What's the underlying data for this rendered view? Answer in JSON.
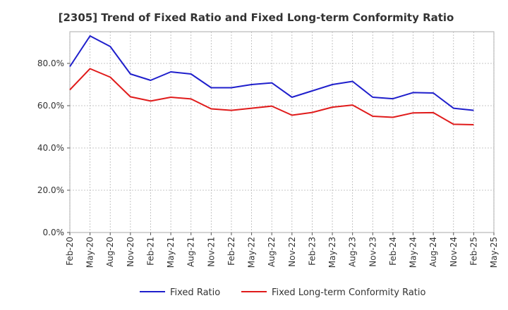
{
  "chart_data": {
    "type": "line",
    "title": "[2305]  Trend of Fixed Ratio and Fixed Long-term Conformity Ratio",
    "xlabel": "",
    "ylabel": "",
    "x_ticks": [
      "Feb-20",
      "May-20",
      "Aug-20",
      "Nov-20",
      "Feb-21",
      "May-21",
      "Aug-21",
      "Nov-21",
      "Feb-22",
      "May-22",
      "Aug-22",
      "Nov-22",
      "Feb-23",
      "May-23",
      "Aug-23",
      "Nov-23",
      "Feb-24",
      "May-24",
      "Aug-24",
      "Nov-24",
      "Feb-25",
      "May-25"
    ],
    "y_ticks": [
      "0.0%",
      "20.0%",
      "40.0%",
      "60.0%",
      "80.0%"
    ],
    "ylim": [
      0,
      95
    ],
    "grid": true,
    "legend": "bottom-center",
    "x": [
      "Feb-20",
      "May-20",
      "Aug-20",
      "Nov-20",
      "Feb-21",
      "May-21",
      "Aug-21",
      "Nov-21",
      "Feb-22",
      "May-22",
      "Aug-22",
      "Nov-22",
      "Feb-23",
      "May-23",
      "Aug-23",
      "Nov-23",
      "Feb-24",
      "May-24",
      "Aug-24",
      "Nov-24",
      "Feb-25"
    ],
    "series": [
      {
        "name": "Fixed Ratio",
        "color": "#1f1fcc",
        "values": [
          78.5,
          93.0,
          88.0,
          75.0,
          72.0,
          76.0,
          75.0,
          68.5,
          68.5,
          70.0,
          70.8,
          64.0,
          67.0,
          70.0,
          71.5,
          64.0,
          63.3,
          66.2,
          66.0,
          58.8,
          57.8
        ]
      },
      {
        "name": "Fixed Long-term Conformity Ratio",
        "color": "#e01b1b",
        "values": [
          67.5,
          77.5,
          73.5,
          64.2,
          62.2,
          64.0,
          63.2,
          58.5,
          57.8,
          58.8,
          59.8,
          55.5,
          56.8,
          59.3,
          60.3,
          55.0,
          54.5,
          56.6,
          56.7,
          51.2,
          51.0
        ]
      }
    ]
  }
}
